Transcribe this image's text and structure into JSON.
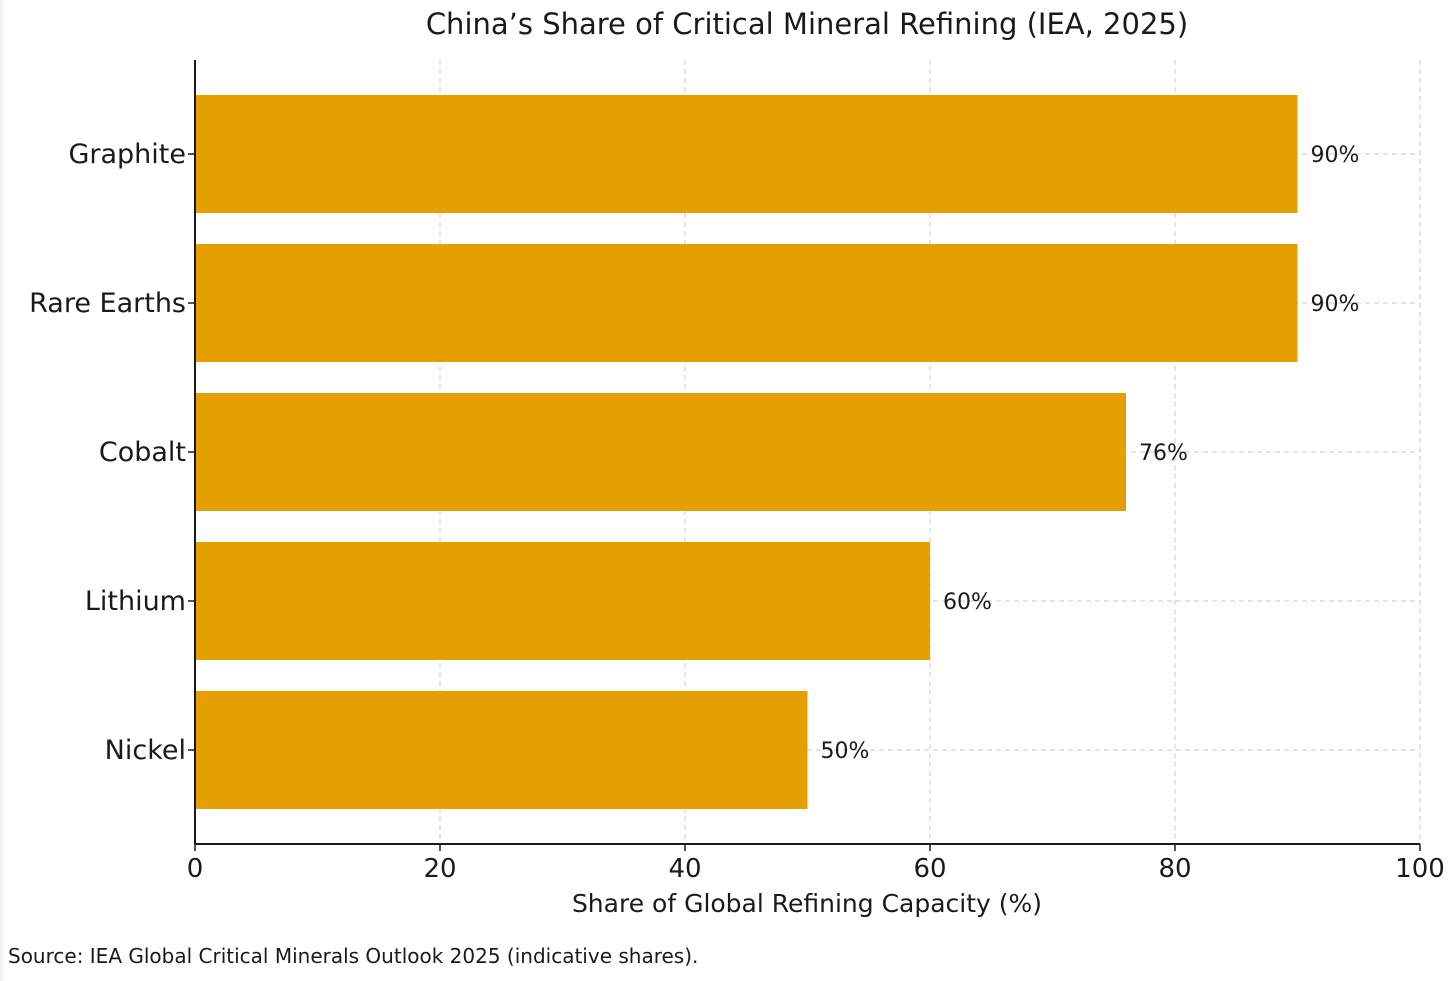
{
  "chart_data": {
    "type": "bar",
    "orientation": "horizontal",
    "title": "China’s Share of Critical Mineral Refining (IEA, 2025)",
    "xlabel": "Share of Global Refining Capacity (%)",
    "ylabel": "",
    "categories": [
      "Graphite",
      "Rare Earths",
      "Cobalt",
      "Lithium",
      "Nickel"
    ],
    "values": [
      90,
      90,
      76,
      60,
      50
    ],
    "data_labels": [
      "90%",
      "90%",
      "76%",
      "60%",
      "50%"
    ],
    "xlim": [
      0,
      100
    ],
    "xticks": [
      0,
      20,
      40,
      60,
      80,
      100
    ],
    "xtick_labels": [
      "0",
      "20",
      "40",
      "60",
      "80",
      "100"
    ],
    "grid": true,
    "bar_color": "#E69F00",
    "grid_color": "#c8c8c8"
  },
  "source_note": "Source: IEA Global Critical Minerals Outlook 2025 (indicative shares)."
}
